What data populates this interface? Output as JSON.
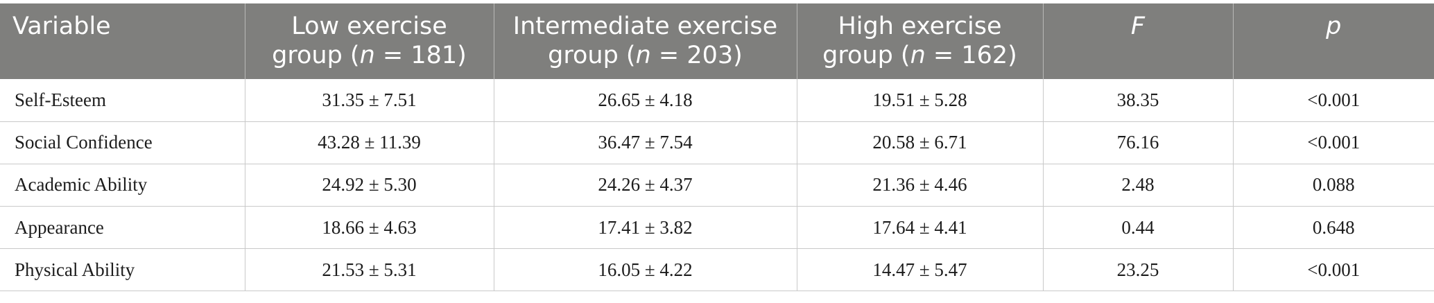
{
  "table": {
    "headers": [
      {
        "pre": "Variable",
        "italic": "",
        "post": ""
      },
      {
        "pre": "Low exercise group (",
        "italic": "n",
        "post": " = 181)"
      },
      {
        "pre": "Intermediate exercise group (",
        "italic": "n",
        "post": " = 203)"
      },
      {
        "pre": "High exercise group (",
        "italic": "n",
        "post": " = 162)"
      },
      {
        "pre": "",
        "italic": "F",
        "post": ""
      },
      {
        "pre": "",
        "italic": "p",
        "post": ""
      }
    ],
    "rows": [
      [
        "Self-Esteem",
        "31.35 ± 7.51",
        "26.65 ± 4.18",
        "19.51 ± 5.28",
        "38.35",
        "<0.001"
      ],
      [
        "Social Confidence",
        "43.28 ± 11.39",
        "36.47 ± 7.54",
        "20.58 ± 6.71",
        "76.16",
        "<0.001"
      ],
      [
        "Academic Ability",
        "24.92 ± 5.30",
        "24.26 ± 4.37",
        "21.36 ± 4.46",
        "2.48",
        "0.088"
      ],
      [
        "Appearance",
        "18.66 ± 4.63",
        "17.41 ± 3.82",
        "17.64 ± 4.41",
        "0.44",
        "0.648"
      ],
      [
        "Physical Ability",
        "21.53 ± 5.31",
        "16.05 ± 4.22",
        "14.47 ± 5.47",
        "23.25",
        "<0.001"
      ]
    ]
  },
  "colors": {
    "header_background": "#7f7f7d",
    "header_text": "#ffffff",
    "grid_line": "#c9c9c9"
  }
}
